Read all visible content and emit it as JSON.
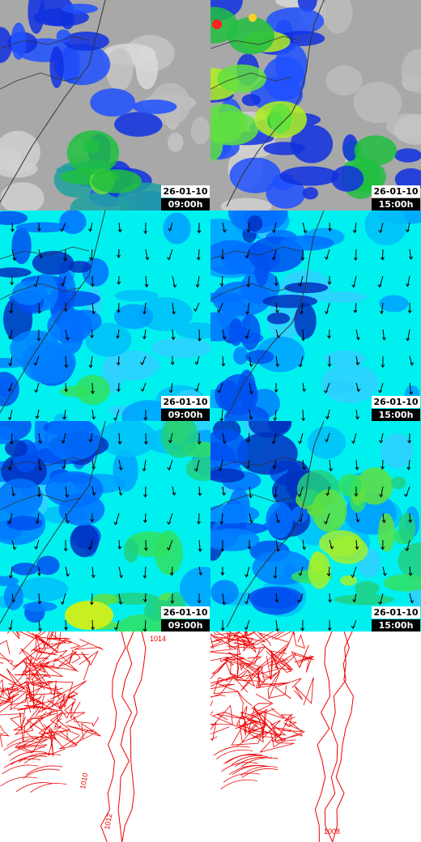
{
  "rows": [
    [
      {
        "date": "26-01-10",
        "time": "09:00h"
      },
      {
        "date": "26-01-10",
        "time": "15:00h"
      }
    ],
    [
      {
        "date": "26-01-10",
        "time": "09:00h"
      },
      {
        "date": "26-01-10",
        "time": "15:00h"
      }
    ],
    [
      {
        "date": "26-01-10",
        "time": "09:00h"
      },
      {
        "date": "26-01-10",
        "time": "15:00h"
      }
    ],
    [
      {
        "labels": [
          "1014",
          "1010",
          "1012"
        ]
      },
      {
        "labels": [
          "1008"
        ]
      }
    ]
  ]
}
